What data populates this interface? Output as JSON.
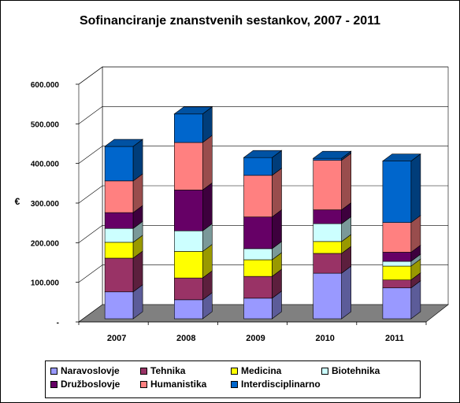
{
  "chart_data": {
    "type": "bar",
    "stacked": true,
    "title": "Sofinanciranje znanstvenih sestankov, 2007 - 2011",
    "ylabel": "€",
    "xlabel": "",
    "categories": [
      "2007",
      "2008",
      "2009",
      "2010",
      "2011"
    ],
    "yticks": [
      "-",
      "100.000",
      "200.000",
      "300.000",
      "400.000",
      "500.000",
      "600.000"
    ],
    "ylim": [
      0,
      600000
    ],
    "grid": true,
    "legend_position": "bottom",
    "series": [
      {
        "name": "Naravoslovje",
        "color": "#9999ff",
        "values": [
          68000,
          48000,
          52000,
          115000,
          78000
        ]
      },
      {
        "name": "Tehnika",
        "color": "#993366",
        "values": [
          85000,
          55000,
          55000,
          50000,
          20000
        ]
      },
      {
        "name": "Medicina",
        "color": "#ffff00",
        "values": [
          40000,
          67000,
          42000,
          30000,
          35000
        ]
      },
      {
        "name": "Biotehnika",
        "color": "#ccffff",
        "values": [
          35000,
          52000,
          28000,
          45000,
          12000
        ]
      },
      {
        "name": "Družboslovje",
        "color": "#660066",
        "values": [
          40000,
          103000,
          80000,
          35000,
          23000
        ]
      },
      {
        "name": "Humanistika",
        "color": "#ff8080",
        "values": [
          80000,
          120000,
          105000,
          125000,
          75000
        ]
      },
      {
        "name": "Interdisciplinarno",
        "color": "#0066cc",
        "values": [
          87000,
          72000,
          45000,
          5000,
          155000
        ]
      }
    ]
  }
}
